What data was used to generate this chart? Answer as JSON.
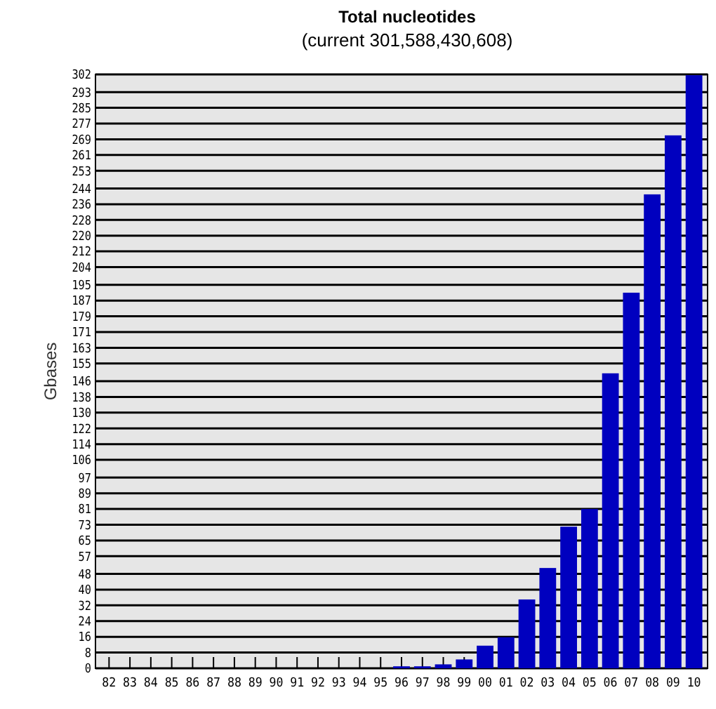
{
  "chart_data": {
    "type": "bar",
    "title": "Total nucleotides",
    "subtitle": "(current 301,588,430,608)",
    "ylabel": "Gbases",
    "categories": [
      "82",
      "83",
      "84",
      "85",
      "86",
      "87",
      "88",
      "89",
      "90",
      "91",
      "92",
      "93",
      "94",
      "95",
      "96",
      "97",
      "98",
      "99",
      "00",
      "01",
      "02",
      "03",
      "04",
      "05",
      "06",
      "07",
      "08",
      "09",
      "10"
    ],
    "values": [
      0,
      0,
      0,
      0,
      0,
      0,
      0,
      0,
      0,
      0,
      0,
      0,
      0,
      0,
      1,
      1,
      2,
      4.5,
      11.5,
      15.8,
      35,
      51,
      72,
      81,
      150,
      191,
      241,
      271,
      301.6
    ],
    "color": "#0000bf",
    "ylim": [
      0,
      302
    ],
    "yticks": [
      0,
      8,
      16,
      24,
      32,
      40,
      48,
      57,
      65,
      73,
      81,
      89,
      97,
      106,
      114,
      122,
      130,
      138,
      146,
      155,
      163,
      171,
      179,
      187,
      195,
      204,
      212,
      220,
      228,
      236,
      244,
      253,
      261,
      269,
      277,
      285,
      293,
      302
    ],
    "grid": "y"
  }
}
